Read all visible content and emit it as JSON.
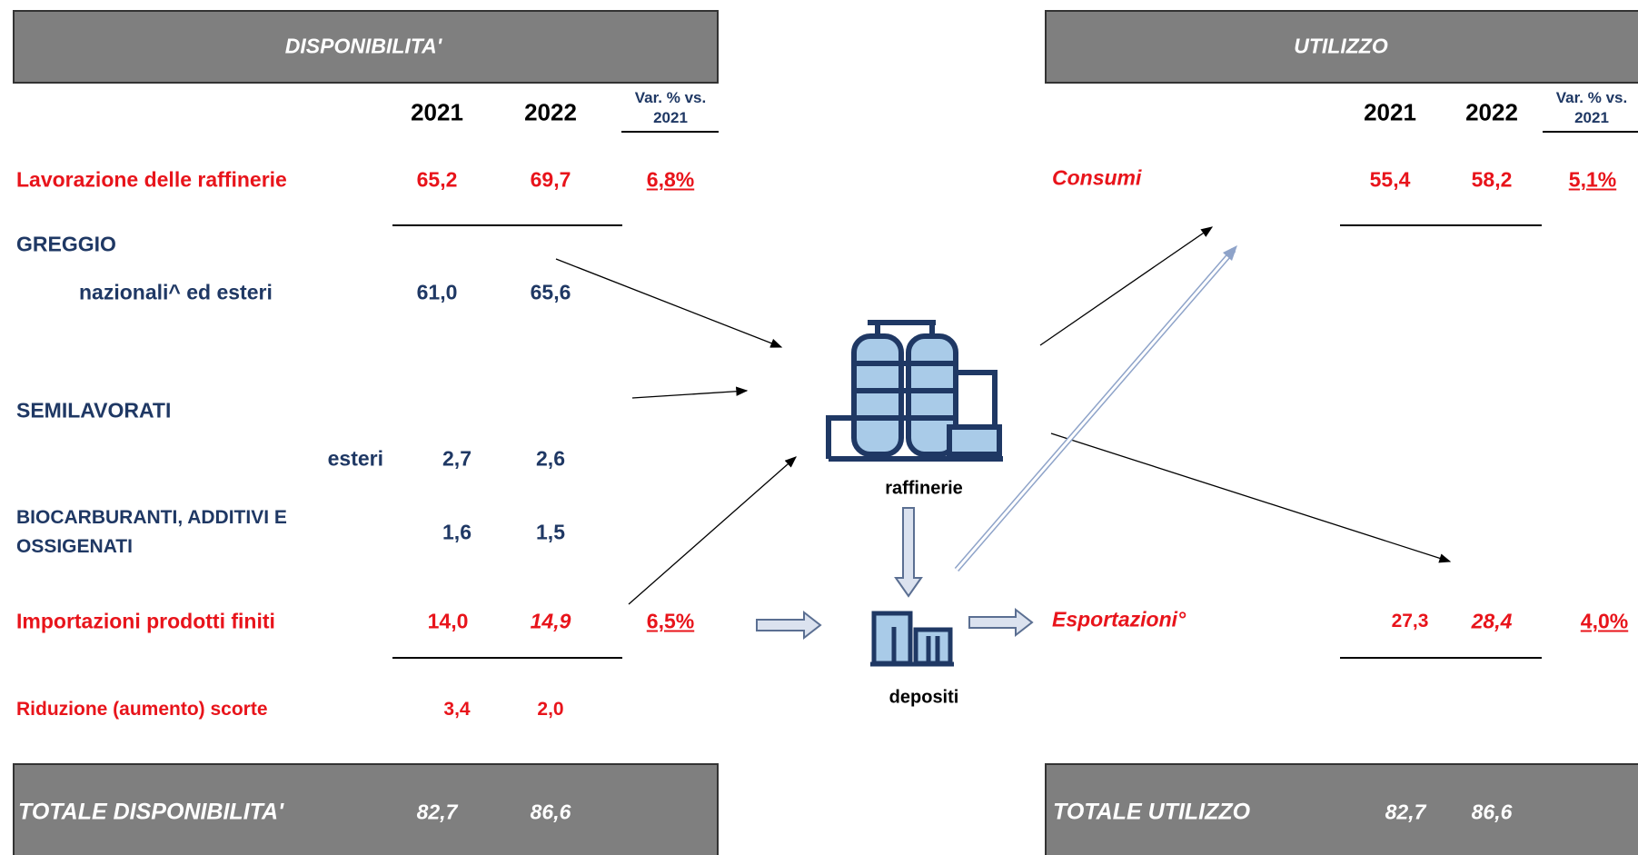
{
  "left": {
    "header": "DISPONIBILITA'",
    "col_a": "2021",
    "col_b": "2022",
    "col_var": "Var. % vs. 2021",
    "rows": [
      {
        "label": "Lavorazione delle raffinerie",
        "a": "65,2",
        "b": "69,7",
        "var": "6,8%"
      },
      {
        "label": "GREGGIO"
      },
      {
        "label": "nazionali^ ed esteri",
        "a": "61,0",
        "b": "65,6"
      },
      {
        "label": "SEMILAVORATI"
      },
      {
        "label": "esteri",
        "a": "2,7",
        "b": "2,6"
      },
      {
        "label": "BIOCARBURANTI, ADDITIVI E OSSIGENATI",
        "a": "1,6",
        "b": "1,5"
      },
      {
        "label": "Importazioni prodotti finiti",
        "a": "14,0",
        "b": "14,9",
        "var": "6,5%"
      },
      {
        "label": "Riduzione (aumento)  scorte",
        "a": "3,4",
        "b": "2,0"
      }
    ],
    "total": {
      "label": "TOTALE DISPONIBILITA'",
      "a": "82,7",
      "b": "86,6"
    }
  },
  "right": {
    "header": "UTILIZZO",
    "col_a": "2021",
    "col_b": "2022",
    "col_var": "Var. % vs. 2021",
    "rows": [
      {
        "label": "Consumi",
        "a": "55,4",
        "b": "58,2",
        "var": "5,1%"
      },
      {
        "label": "Esportazioni°",
        "a": "27,3",
        "b": "28,4",
        "var": "4,0%"
      }
    ],
    "total": {
      "label": "TOTALE UTILIZZO",
      "a": "82,7",
      "b": "86,6"
    }
  },
  "icons": {
    "refinery": "raffinerie",
    "depot": "depositi"
  }
}
